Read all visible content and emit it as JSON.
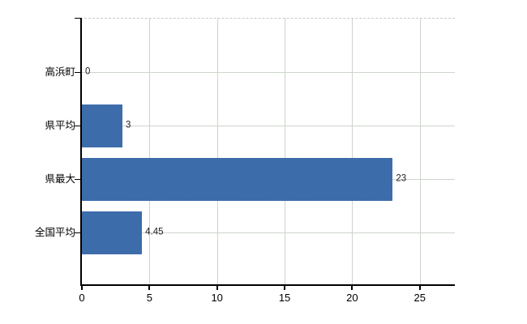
{
  "chart_data": {
    "type": "bar",
    "orientation": "horizontal",
    "categories": [
      "高浜町",
      "県平均",
      "県最大",
      "全国平均"
    ],
    "values": [
      0,
      3,
      23,
      4.45
    ],
    "value_labels": [
      "0",
      "3",
      "23",
      "4.45"
    ],
    "x_ticks": [
      0,
      5,
      10,
      15,
      20,
      25
    ],
    "x_tick_labels": [
      "0",
      "5",
      "10",
      "15",
      "20",
      "25"
    ],
    "xlim": [
      0,
      27.6
    ],
    "grid": "on",
    "legend": "none",
    "colors": {
      "bar": "#3c6dad",
      "bar_dither_dark": "#2f5f9e",
      "bar_dither_light": "#4b79b7",
      "gridline": "#cdd5cc",
      "plot_border_dashed": "#c9c9c9",
      "axis": "#000000",
      "text": "#000000",
      "background": "#ffffff"
    }
  }
}
